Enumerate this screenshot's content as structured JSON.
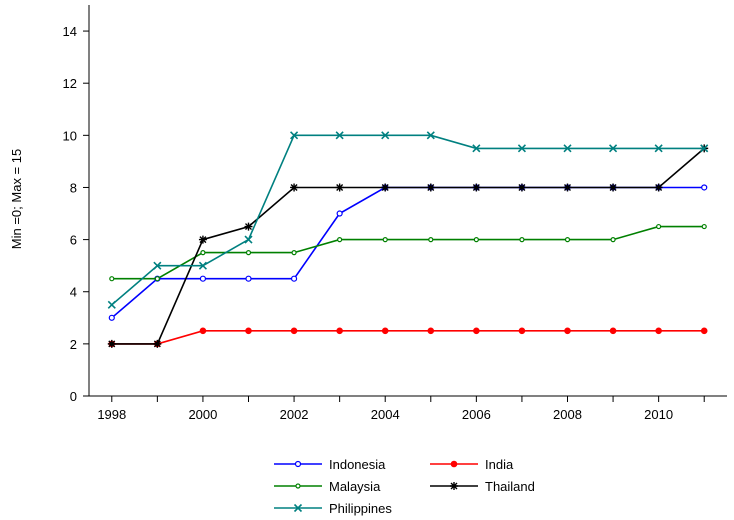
{
  "chart_data": {
    "type": "line",
    "title": "",
    "xlabel": "",
    "ylabel": "Min =0; Max = 15",
    "ylim": [
      0,
      15
    ],
    "xlim": [
      1997.5,
      2011.5
    ],
    "yticks": [
      0,
      2,
      4,
      6,
      8,
      10,
      12,
      14
    ],
    "xticks": [
      1998,
      2000,
      2002,
      2004,
      2006,
      2008,
      2010
    ],
    "grid": false,
    "legend_position": "bottom",
    "x": [
      1998,
      1999,
      2000,
      2001,
      2002,
      2003,
      2004,
      2005,
      2006,
      2007,
      2008,
      2009,
      2010,
      2011
    ],
    "series": [
      {
        "name": "Indonesia",
        "color": "#0000ff",
        "marker": "open-circle",
        "values": [
          3.0,
          4.5,
          4.5,
          4.5,
          4.5,
          7.0,
          8.0,
          8.0,
          8.0,
          8.0,
          8.0,
          8.0,
          8.0,
          8.0
        ]
      },
      {
        "name": "India",
        "color": "#ff0000",
        "marker": "filled-circle",
        "values": [
          2.0,
          2.0,
          2.5,
          2.5,
          2.5,
          2.5,
          2.5,
          2.5,
          2.5,
          2.5,
          2.5,
          2.5,
          2.5,
          2.5
        ]
      },
      {
        "name": "Malaysia",
        "color": "#008000",
        "marker": "small-circle",
        "values": [
          4.5,
          4.5,
          5.5,
          5.5,
          5.5,
          6.0,
          6.0,
          6.0,
          6.0,
          6.0,
          6.0,
          6.0,
          6.5,
          6.5
        ]
      },
      {
        "name": "Thailand",
        "color": "#000000",
        "marker": "asterisk",
        "values": [
          2.0,
          2.0,
          6.0,
          6.5,
          8.0,
          8.0,
          8.0,
          8.0,
          8.0,
          8.0,
          8.0,
          8.0,
          8.0,
          9.5
        ]
      },
      {
        "name": "Philippines",
        "color": "#008080",
        "marker": "x",
        "values": [
          3.5,
          5.0,
          5.0,
          6.0,
          10.0,
          10.0,
          10.0,
          10.0,
          9.5,
          9.5,
          9.5,
          9.5,
          9.5,
          9.5
        ]
      }
    ]
  }
}
